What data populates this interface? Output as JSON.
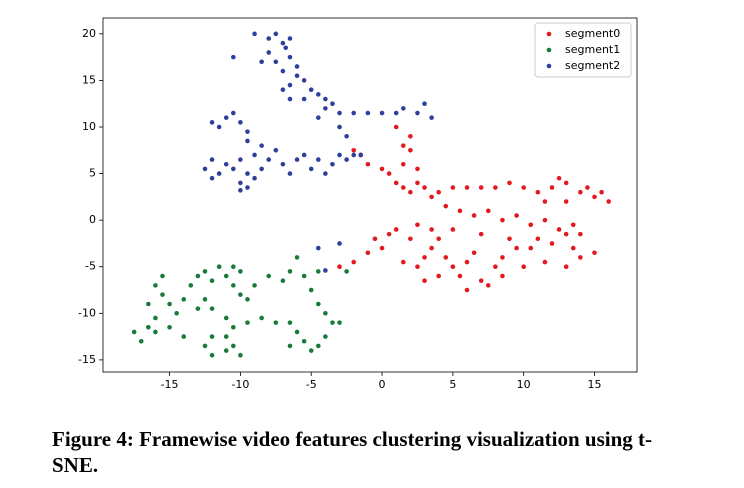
{
  "chart_data": {
    "type": "scatter",
    "caption": "Figure 4: Framewise video features clustering visualization using t-SNE.",
    "xlim": [
      -19.7,
      18.0
    ],
    "ylim": [
      -16.3,
      21.7
    ],
    "xticks": [
      -15,
      -10,
      -5,
      0,
      5,
      10,
      15
    ],
    "yticks": [
      -15,
      -10,
      -5,
      0,
      5,
      10,
      15,
      20
    ],
    "legend": "upper right",
    "series": [
      {
        "name": "segment0",
        "color": "#e3191f",
        "x": [
          -2,
          -1.5,
          -1,
          0,
          0.5,
          1,
          1.5,
          2,
          2.5,
          3,
          3.5,
          4,
          2,
          2,
          1.5,
          2.5,
          1,
          1.5,
          5,
          6,
          7,
          8,
          9,
          10,
          11,
          12,
          13,
          14,
          15,
          16,
          15.5,
          14.5,
          12.5,
          11.5,
          13,
          4.5,
          5.5,
          6.5,
          7.5,
          8.5,
          9.5,
          10.5,
          11.5,
          12.5,
          13.5,
          14,
          -3,
          -2,
          -1,
          0,
          -0.5,
          0.5,
          1,
          2,
          1.5,
          2.5,
          3,
          3.5,
          4,
          4.5,
          5,
          5.5,
          6,
          6.5,
          7,
          7.5,
          8,
          8.5,
          9,
          9.5,
          10,
          10.5,
          11,
          12,
          13,
          13.5,
          14,
          15,
          13,
          6,
          4,
          3,
          7,
          5,
          3.5,
          2.5,
          11.5,
          8.5
        ],
        "y": [
          7.5,
          7,
          6,
          5.5,
          5,
          4,
          3.5,
          3,
          4,
          3.5,
          2.5,
          3,
          9,
          7.5,
          6,
          5.5,
          10,
          8,
          3.5,
          3.5,
          3.5,
          3.5,
          4,
          3.5,
          3,
          3.5,
          4,
          3,
          2.5,
          2,
          3,
          3.5,
          4.5,
          2,
          2,
          1.5,
          1,
          0.5,
          1,
          0,
          0.5,
          -0.5,
          0,
          -1,
          -0.5,
          -1.5,
          -5,
          -4.5,
          -3.5,
          -3,
          -2,
          -1.5,
          -1,
          -2,
          -4.5,
          -5,
          -4,
          -3,
          -2,
          -4,
          -5,
          -6,
          -4.5,
          -3.5,
          -6.5,
          -7,
          -5,
          -4,
          -2,
          -3,
          -5,
          -3,
          -2,
          -2.5,
          -1.5,
          -3,
          -4,
          -3.5,
          -5,
          -7.5,
          -6,
          -6.5,
          -1.5,
          -1,
          -1,
          -0.5,
          -4.5,
          -6
        ]
      },
      {
        "name": "segment1",
        "color": "#1a7a3c",
        "x": [
          -17.5,
          -17,
          -16.5,
          -16,
          -16.5,
          -15.5,
          -16,
          -15.5,
          -15,
          -14.5,
          -15,
          -14,
          -13.5,
          -13,
          -12.5,
          -12,
          -11.5,
          -11,
          -10.5,
          -10,
          -10.5,
          -10,
          -9.5,
          -9,
          -8,
          -7,
          -6.5,
          -12.5,
          -13,
          -12,
          -11,
          -10.5,
          -11,
          -12,
          -12.5,
          -12,
          -11,
          -10,
          -10.5,
          -9.5,
          -8.5,
          -7.5,
          -6.5,
          -6,
          -5.5,
          -5,
          -4.5,
          -4,
          -3.5,
          -4,
          -4.5,
          -5,
          -5.5,
          -6,
          -4.5,
          -3,
          -6.5,
          -14,
          -16,
          -2.5
        ],
        "y": [
          -12,
          -13,
          -11.5,
          -10.5,
          -9,
          -8,
          -7,
          -6,
          -9,
          -10,
          -11.5,
          -8.5,
          -7,
          -6,
          -5.5,
          -6.5,
          -5,
          -6,
          -5,
          -5.5,
          -7,
          -8,
          -8.5,
          -7,
          -6,
          -6.5,
          -5.5,
          -8.5,
          -9.5,
          -9.5,
          -10.5,
          -11.5,
          -12.5,
          -12.5,
          -13.5,
          -14.5,
          -14,
          -14.5,
          -13.5,
          -11,
          -10.5,
          -11,
          -11,
          -12,
          -13,
          -14,
          -13.5,
          -12.5,
          -11,
          -10,
          -9,
          -7.5,
          -6,
          -4,
          -5.5,
          -11,
          -13.5,
          -12.5,
          -12,
          -5.5
        ]
      },
      {
        "name": "segment2",
        "color": "#2e3f9c",
        "x": [
          -9,
          -8,
          -7.5,
          -7,
          -6.5,
          -6.8,
          -8,
          -8.5,
          -7.5,
          -6.5,
          -6,
          -7,
          -6,
          -5.5,
          -6.5,
          -5,
          -4.5,
          -5.5,
          -4,
          -3.5,
          -4,
          -3,
          -2,
          -1,
          0,
          1,
          1.5,
          2.5,
          3,
          3.5,
          -7,
          -6.5,
          -10.5,
          -4.5,
          -3,
          -2.5,
          -12,
          -11,
          -10.5,
          -11.5,
          -10,
          -9.5,
          -12.5,
          -12,
          -11.5,
          -12,
          -11,
          -10.5,
          -10,
          -9.5,
          -9.5,
          -10,
          -9,
          -8.5,
          -8,
          -9,
          -7.5,
          -7,
          -6.5,
          -6,
          -5.5,
          -5,
          -4.5,
          -4,
          -3.5,
          -3,
          -2.5,
          -2,
          -1.5,
          -8.5,
          -9.5,
          -10,
          -4,
          -4.5,
          -3
        ],
        "y": [
          20,
          19.5,
          20,
          19,
          19.5,
          18.5,
          18,
          17,
          17,
          17.5,
          16.5,
          16,
          15.5,
          15,
          14.5,
          14,
          13.5,
          13,
          13,
          12.5,
          12,
          11.5,
          11.5,
          11.5,
          11.5,
          11.5,
          12,
          11.5,
          12.5,
          11,
          14,
          13,
          17.5,
          11,
          10,
          9,
          10.5,
          11,
          11.5,
          10,
          10.5,
          9.5,
          5.5,
          6.5,
          5,
          4.5,
          6,
          5.5,
          4,
          3.5,
          5,
          6.5,
          4.5,
          5.5,
          6.5,
          7,
          7.5,
          6,
          5,
          6.5,
          7,
          5.5,
          6.5,
          5,
          6,
          7,
          6.5,
          7,
          7,
          8,
          8.5,
          3.2,
          -5.4,
          -3,
          -2.5
        ]
      }
    ]
  }
}
